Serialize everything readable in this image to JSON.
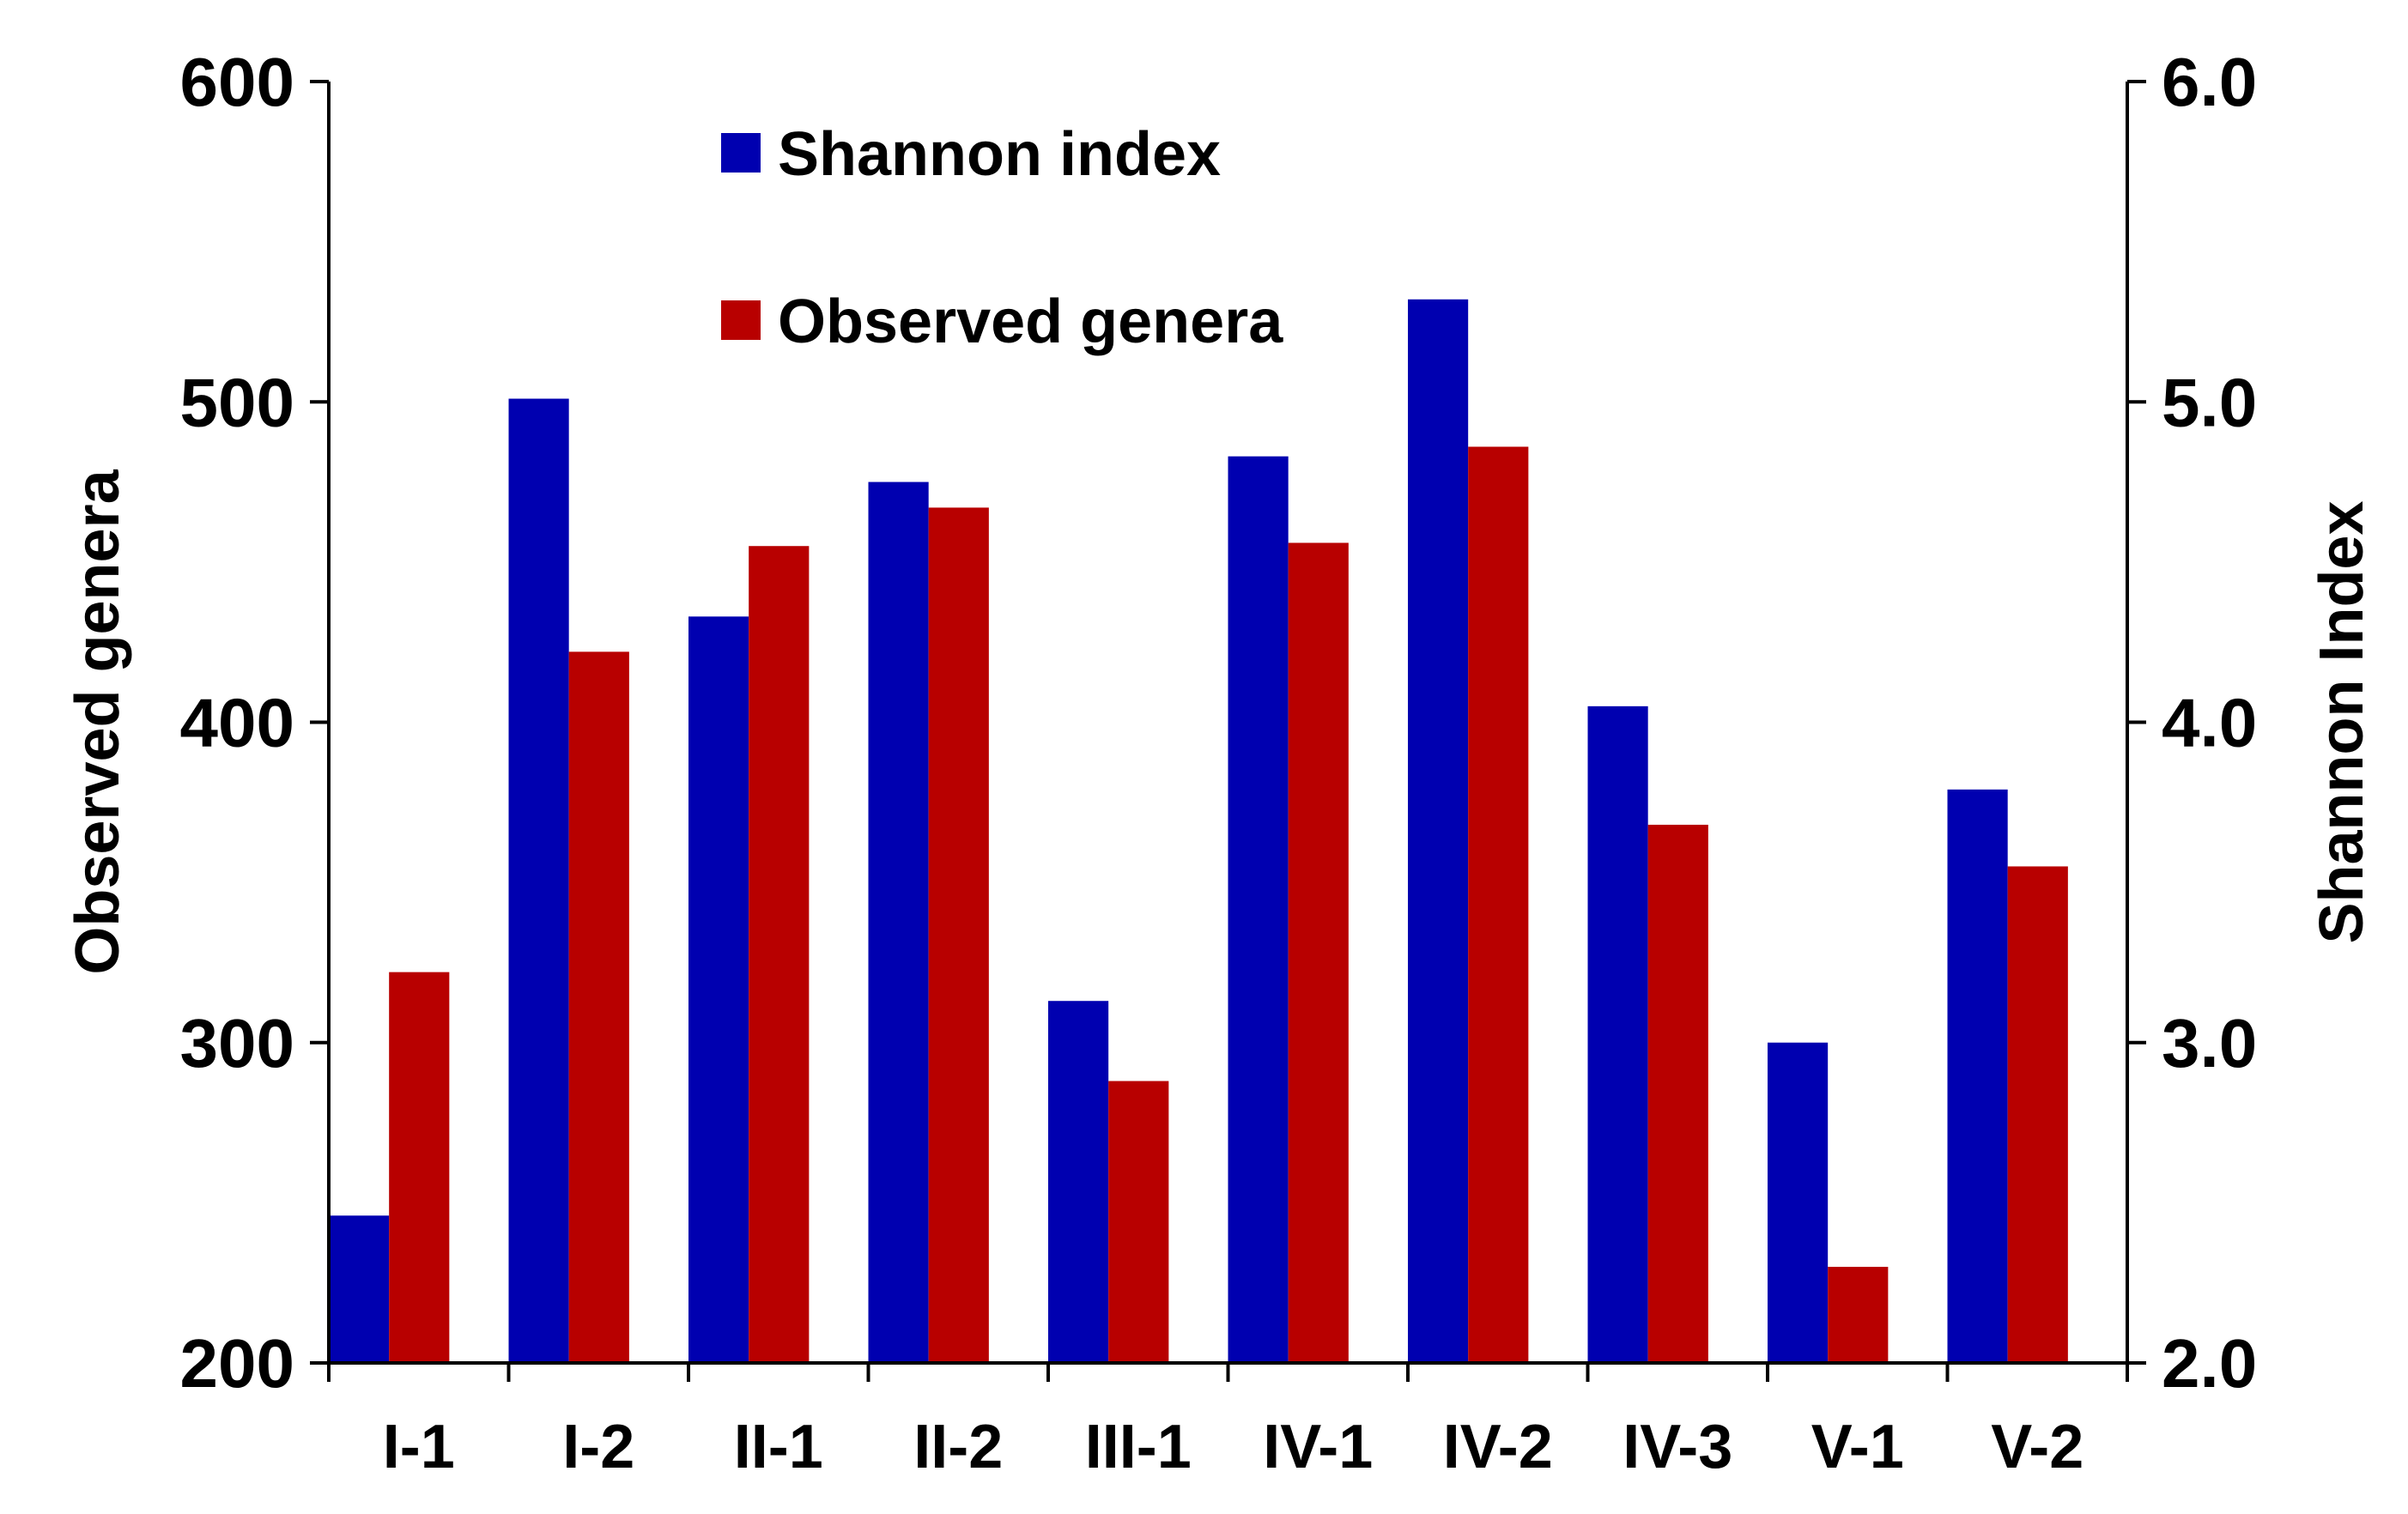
{
  "chart_data": {
    "type": "bar",
    "categories": [
      "I-1",
      "I-2",
      "II-1",
      "II-2",
      "III-1",
      "IV-1",
      "IV-2",
      "IV-3",
      "V-1",
      "V-2"
    ],
    "series": [
      {
        "name": "Shannon index",
        "axis": "right",
        "color": "#0000b0",
        "values": [
          2.46,
          5.01,
          4.33,
          4.75,
          3.13,
          4.83,
          5.32,
          4.05,
          3.0,
          3.79
        ]
      },
      {
        "name": "Observed genera",
        "axis": "left",
        "color": "#b80000",
        "values": [
          322,
          422,
          455,
          467,
          288,
          456,
          486,
          368,
          230,
          355
        ]
      }
    ],
    "ylabel_left": "Observed genera",
    "ylabel_right": "Shannon Index",
    "ylim_left": [
      200,
      600
    ],
    "ylim_right": [
      2.0,
      6.0
    ],
    "yticks_left": [
      "200",
      "300",
      "400",
      "500",
      "600"
    ],
    "yticks_right": [
      "2.0",
      "3.0",
      "4.0",
      "5.0",
      "6.0"
    ],
    "grid": false,
    "legend_position": "top-center"
  }
}
